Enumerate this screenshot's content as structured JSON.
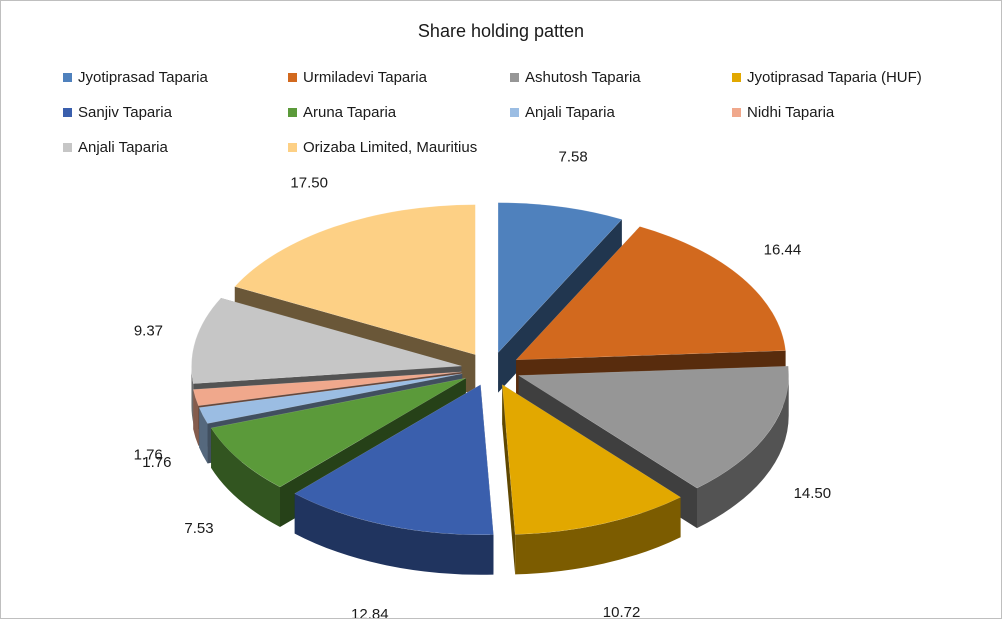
{
  "chart_data": {
    "type": "pie",
    "title": "Share holding patten",
    "legend_position": "top",
    "categories": [
      "Jyotiprasad Taparia",
      "Urmiladevi Taparia",
      "Ashutosh Taparia",
      "Jyotiprasad Taparia (HUF)",
      "Sanjiv Taparia",
      "Aruna Taparia",
      "Anjali Taparia",
      "Nidhi Taparia",
      "Anjali Taparia",
      "Orizaba Limited, Mauritius"
    ],
    "values": [
      7.58,
      16.44,
      14.5,
      10.72,
      12.84,
      7.53,
      1.76,
      1.76,
      9.37,
      17.5
    ],
    "data_labels": [
      "7.58",
      "16.44",
      "14.50",
      "10.72",
      "12.84",
      "7.53",
      "1.76",
      "1.76",
      "9.37",
      "17.50"
    ],
    "colors": [
      "#4f81bd",
      "#d2691e",
      "#969696",
      "#e2a800",
      "#3a5fad",
      "#5b9a3a",
      "#9bbde3",
      "#f0a88c",
      "#c6c6c6",
      "#fdd085"
    ]
  }
}
